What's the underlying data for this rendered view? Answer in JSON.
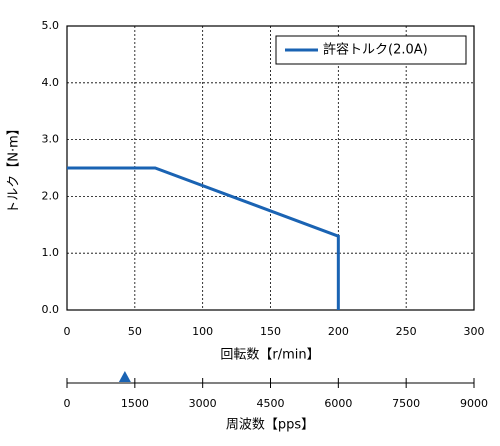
{
  "chart_data": {
    "type": "line",
    "x": [
      0,
      65,
      200,
      200
    ],
    "series": [
      {
        "name": "許容トルク(2.0A)",
        "color": "#1a63b3",
        "values": [
          2.5,
          2.5,
          1.3,
          0
        ]
      }
    ],
    "xlim": [
      0,
      300
    ],
    "xticks": [
      0,
      50,
      100,
      150,
      200,
      250,
      300
    ],
    "ylim": [
      0,
      5
    ],
    "yticks": [
      {
        "value": 0,
        "label": "0.0"
      },
      {
        "value": 1,
        "label": "1.0"
      },
      {
        "value": 2,
        "label": "2.0"
      },
      {
        "value": 3,
        "label": "3.0"
      },
      {
        "value": 4,
        "label": "4.0"
      },
      {
        "value": 5,
        "label": "5.0"
      }
    ],
    "xlabel": "回転数【r/min】",
    "ylabel": "トルク【N·m】",
    "grid": true,
    "legend": "upper right",
    "secondary_axis": {
      "label": "周波数【pps】",
      "lim": [
        0,
        9000
      ],
      "ticks": [
        0,
        1500,
        3000,
        4500,
        6000,
        7500,
        9000
      ],
      "marker": 1280,
      "marker_color": "#1a63b3"
    }
  }
}
